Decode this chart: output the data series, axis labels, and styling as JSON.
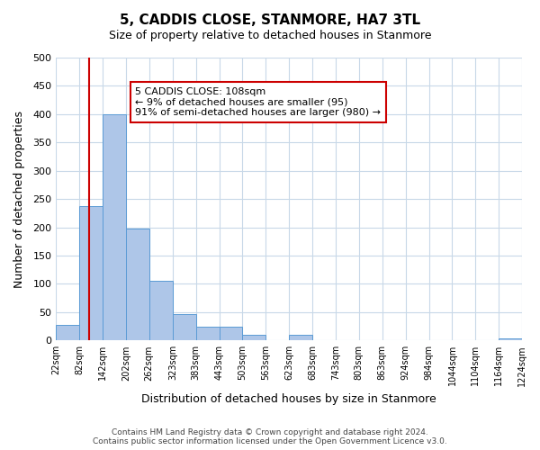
{
  "title": "5, CADDIS CLOSE, STANMORE, HA7 3TL",
  "subtitle": "Size of property relative to detached houses in Stanmore",
  "xlabel": "Distribution of detached houses by size in Stanmore",
  "ylabel": "Number of detached properties",
  "bar_edges": [
    22,
    82,
    142,
    202,
    262,
    323,
    383,
    443,
    503,
    563,
    623,
    683,
    743,
    803,
    863,
    924,
    984,
    1044,
    1104,
    1164,
    1224
  ],
  "bar_heights": [
    27,
    238,
    400,
    197,
    105,
    47,
    25,
    25,
    10,
    0,
    10,
    0,
    0,
    0,
    0,
    0,
    0,
    0,
    0,
    3
  ],
  "bar_color": "#aec6e8",
  "bar_edge_color": "#5b9bd5",
  "property_line_x": 108,
  "property_line_color": "#cc0000",
  "annotation_title": "5 CADDIS CLOSE: 108sqm",
  "annotation_line1": "← 9% of detached houses are smaller (95)",
  "annotation_line2": "91% of semi-detached houses are larger (980) →",
  "annotation_box_color": "#ffffff",
  "annotation_box_edge_color": "#cc0000",
  "ylim": [
    0,
    500
  ],
  "yticks": [
    0,
    50,
    100,
    150,
    200,
    250,
    300,
    350,
    400,
    450,
    500
  ],
  "tick_labels": [
    "22sqm",
    "82sqm",
    "142sqm",
    "202sqm",
    "262sqm",
    "323sqm",
    "383sqm",
    "443sqm",
    "503sqm",
    "563sqm",
    "623sqm",
    "683sqm",
    "743sqm",
    "803sqm",
    "863sqm",
    "924sqm",
    "984sqm",
    "1044sqm",
    "1104sqm",
    "1164sqm",
    "1224sqm"
  ],
  "footer_line1": "Contains HM Land Registry data © Crown copyright and database right 2024.",
  "footer_line2": "Contains public sector information licensed under the Open Government Licence v3.0.",
  "background_color": "#ffffff",
  "grid_color": "#c8d8e8"
}
